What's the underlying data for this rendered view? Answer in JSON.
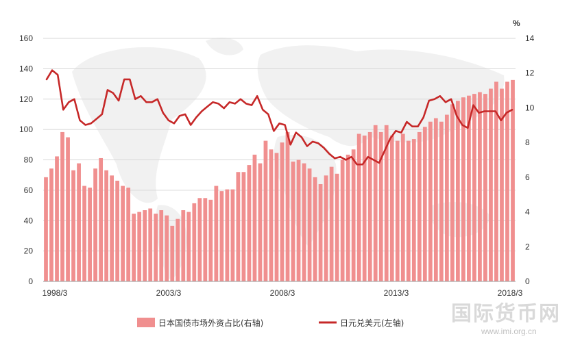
{
  "chart_data": {
    "type": "bar",
    "x_tick_labels": [
      "1998/3",
      "2003/3",
      "2008/3",
      "2013/3",
      "2018/3"
    ],
    "ylim_left": [
      0,
      160
    ],
    "ylim_right": [
      0,
      14
    ],
    "yticks_left": [
      0,
      20,
      40,
      60,
      80,
      100,
      120,
      140,
      160
    ],
    "yticks_right": [
      0,
      2,
      4,
      6,
      8,
      10,
      12,
      14
    ],
    "right_unit": "%",
    "grid": true,
    "legend_position": "bottom",
    "series": [
      {
        "name": "日本国债市场外资占比(右轴)",
        "type": "bar",
        "axis": "right",
        "color": "#f08f8f",
        "values": [
          6.0,
          6.5,
          7.2,
          8.6,
          8.3,
          6.4,
          6.8,
          5.5,
          5.4,
          6.5,
          7.1,
          6.4,
          6.1,
          5.8,
          5.5,
          5.4,
          3.9,
          4.0,
          4.1,
          4.2,
          3.9,
          4.1,
          3.8,
          3.2,
          3.6,
          4.1,
          4.0,
          4.5,
          4.8,
          4.8,
          4.7,
          5.5,
          5.2,
          5.3,
          5.3,
          6.3,
          6.3,
          6.7,
          7.3,
          6.8,
          8.1,
          7.6,
          7.4,
          8.0,
          8.6,
          6.9,
          7.0,
          6.8,
          6.5,
          6.0,
          5.6,
          6.1,
          6.6,
          6.2,
          7.0,
          7.3,
          7.6,
          8.5,
          8.4,
          8.6,
          9.0,
          8.6,
          9.0,
          8.4,
          8.1,
          8.5,
          8.1,
          8.2,
          8.6,
          8.9,
          9.2,
          9.4,
          9.2,
          9.6,
          10.2,
          10.4,
          10.6,
          10.7,
          10.8,
          10.9,
          10.8,
          11.1,
          11.5,
          11.1,
          11.5,
          11.6
        ]
      },
      {
        "name": "日元兑美元(左轴)",
        "type": "line",
        "axis": "left",
        "color": "#c62828",
        "values": [
          133,
          139,
          136,
          113,
          118,
          120,
          106,
          103,
          104,
          107,
          110,
          126,
          124,
          119,
          133,
          133,
          120,
          122,
          118,
          118,
          120,
          111,
          106,
          104,
          109,
          110,
          103,
          108,
          112,
          115,
          118,
          117,
          114,
          118,
          117,
          120,
          117,
          116,
          122,
          113,
          110,
          99,
          104,
          103,
          90,
          98,
          95,
          89,
          92,
          91,
          88,
          84,
          81,
          82,
          80,
          82,
          77,
          77,
          82,
          80,
          78,
          86,
          94,
          99,
          98,
          105,
          102,
          102,
          108,
          119,
          120,
          122,
          118,
          120,
          109,
          103,
          101,
          116,
          111,
          112,
          112,
          112,
          106,
          111,
          113
        ]
      }
    ]
  },
  "legend": {
    "bar_label": "日本国债市场外资占比(右轴)",
    "line_label": "日元兑美元(左轴)"
  },
  "watermark": {
    "text": "国际货币网",
    "url": "www.imi.org.cn"
  }
}
